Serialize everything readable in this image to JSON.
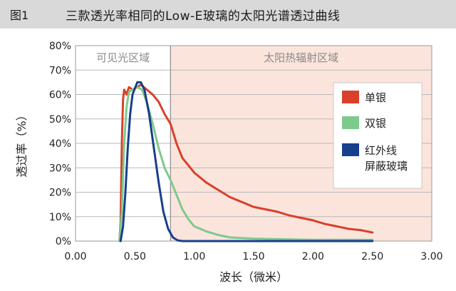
{
  "figure": {
    "label": "图1",
    "title": "三款透光率相同的Low-E玻璃的太阳光谱透过曲线"
  },
  "colors": {
    "header_band": "#d9d9da",
    "visible_region": "#ffffff",
    "solar_region": "#fbe4dc",
    "single_silver": "#d9402a",
    "double_silver": "#7ec98c",
    "shielding_glass": "#163f8c"
  },
  "chart_data": {
    "type": "line",
    "xlabel": "波长（微米）",
    "ylabel": "透过率（%）",
    "xlim": [
      0,
      3.0
    ],
    "ylim": [
      0,
      80
    ],
    "x_ticks": [
      "0.00",
      "0.50",
      "1.00",
      "1.50",
      "2.00",
      "2.50",
      "3.00"
    ],
    "y_ticks": [
      "0%",
      "10%",
      "20%",
      "30%",
      "40%",
      "50%",
      "60%",
      "70%",
      "80%"
    ],
    "regions": [
      {
        "label": "可见光区域",
        "x_start": 0.0,
        "x_end": 0.8
      },
      {
        "label": "太阳热辐射区域",
        "x_start": 0.8,
        "x_end": 3.0
      }
    ],
    "legend_position": "right",
    "series": [
      {
        "name": "单银",
        "color": "#d9402a",
        "points": [
          [
            0.37,
            0
          ],
          [
            0.38,
            8
          ],
          [
            0.39,
            40
          ],
          [
            0.4,
            58
          ],
          [
            0.41,
            62
          ],
          [
            0.43,
            60
          ],
          [
            0.45,
            63
          ],
          [
            0.48,
            62
          ],
          [
            0.52,
            63
          ],
          [
            0.55,
            64
          ],
          [
            0.6,
            62
          ],
          [
            0.65,
            60
          ],
          [
            0.7,
            57
          ],
          [
            0.75,
            52
          ],
          [
            0.8,
            48
          ],
          [
            0.85,
            40
          ],
          [
            0.9,
            34
          ],
          [
            1.0,
            28
          ],
          [
            1.1,
            24
          ],
          [
            1.2,
            21
          ],
          [
            1.3,
            18
          ],
          [
            1.4,
            16
          ],
          [
            1.5,
            14
          ],
          [
            1.6,
            13
          ],
          [
            1.7,
            12
          ],
          [
            1.8,
            10.5
          ],
          [
            1.9,
            9.5
          ],
          [
            2.0,
            8.5
          ],
          [
            2.1,
            7
          ],
          [
            2.2,
            6
          ],
          [
            2.3,
            5
          ],
          [
            2.4,
            4.5
          ],
          [
            2.5,
            3.5
          ]
        ]
      },
      {
        "name": "双银",
        "color": "#7ec98c",
        "points": [
          [
            0.37,
            0
          ],
          [
            0.39,
            12
          ],
          [
            0.41,
            40
          ],
          [
            0.43,
            55
          ],
          [
            0.45,
            61
          ],
          [
            0.48,
            62
          ],
          [
            0.52,
            63
          ],
          [
            0.56,
            62
          ],
          [
            0.6,
            57
          ],
          [
            0.65,
            48
          ],
          [
            0.7,
            38
          ],
          [
            0.75,
            30
          ],
          [
            0.8,
            25
          ],
          [
            0.85,
            19
          ],
          [
            0.9,
            13
          ],
          [
            0.95,
            9
          ],
          [
            1.0,
            6
          ],
          [
            1.1,
            4
          ],
          [
            1.2,
            2.5
          ],
          [
            1.3,
            1.5
          ],
          [
            1.5,
            1
          ],
          [
            2.0,
            0.5
          ],
          [
            2.5,
            0.5
          ]
        ]
      },
      {
        "name": "红外线屏蔽玻璃",
        "legend_lines": [
          "红外线",
          "屏蔽玻璃"
        ],
        "color": "#163f8c",
        "points": [
          [
            0.38,
            0
          ],
          [
            0.4,
            6
          ],
          [
            0.42,
            20
          ],
          [
            0.44,
            38
          ],
          [
            0.46,
            52
          ],
          [
            0.48,
            60
          ],
          [
            0.52,
            65
          ],
          [
            0.55,
            65
          ],
          [
            0.58,
            62
          ],
          [
            0.62,
            52
          ],
          [
            0.66,
            38
          ],
          [
            0.7,
            24
          ],
          [
            0.74,
            12
          ],
          [
            0.78,
            5
          ],
          [
            0.82,
            1.5
          ],
          [
            0.86,
            0.3
          ],
          [
            0.9,
            0
          ],
          [
            1.5,
            0
          ],
          [
            2.5,
            0
          ]
        ]
      }
    ]
  }
}
